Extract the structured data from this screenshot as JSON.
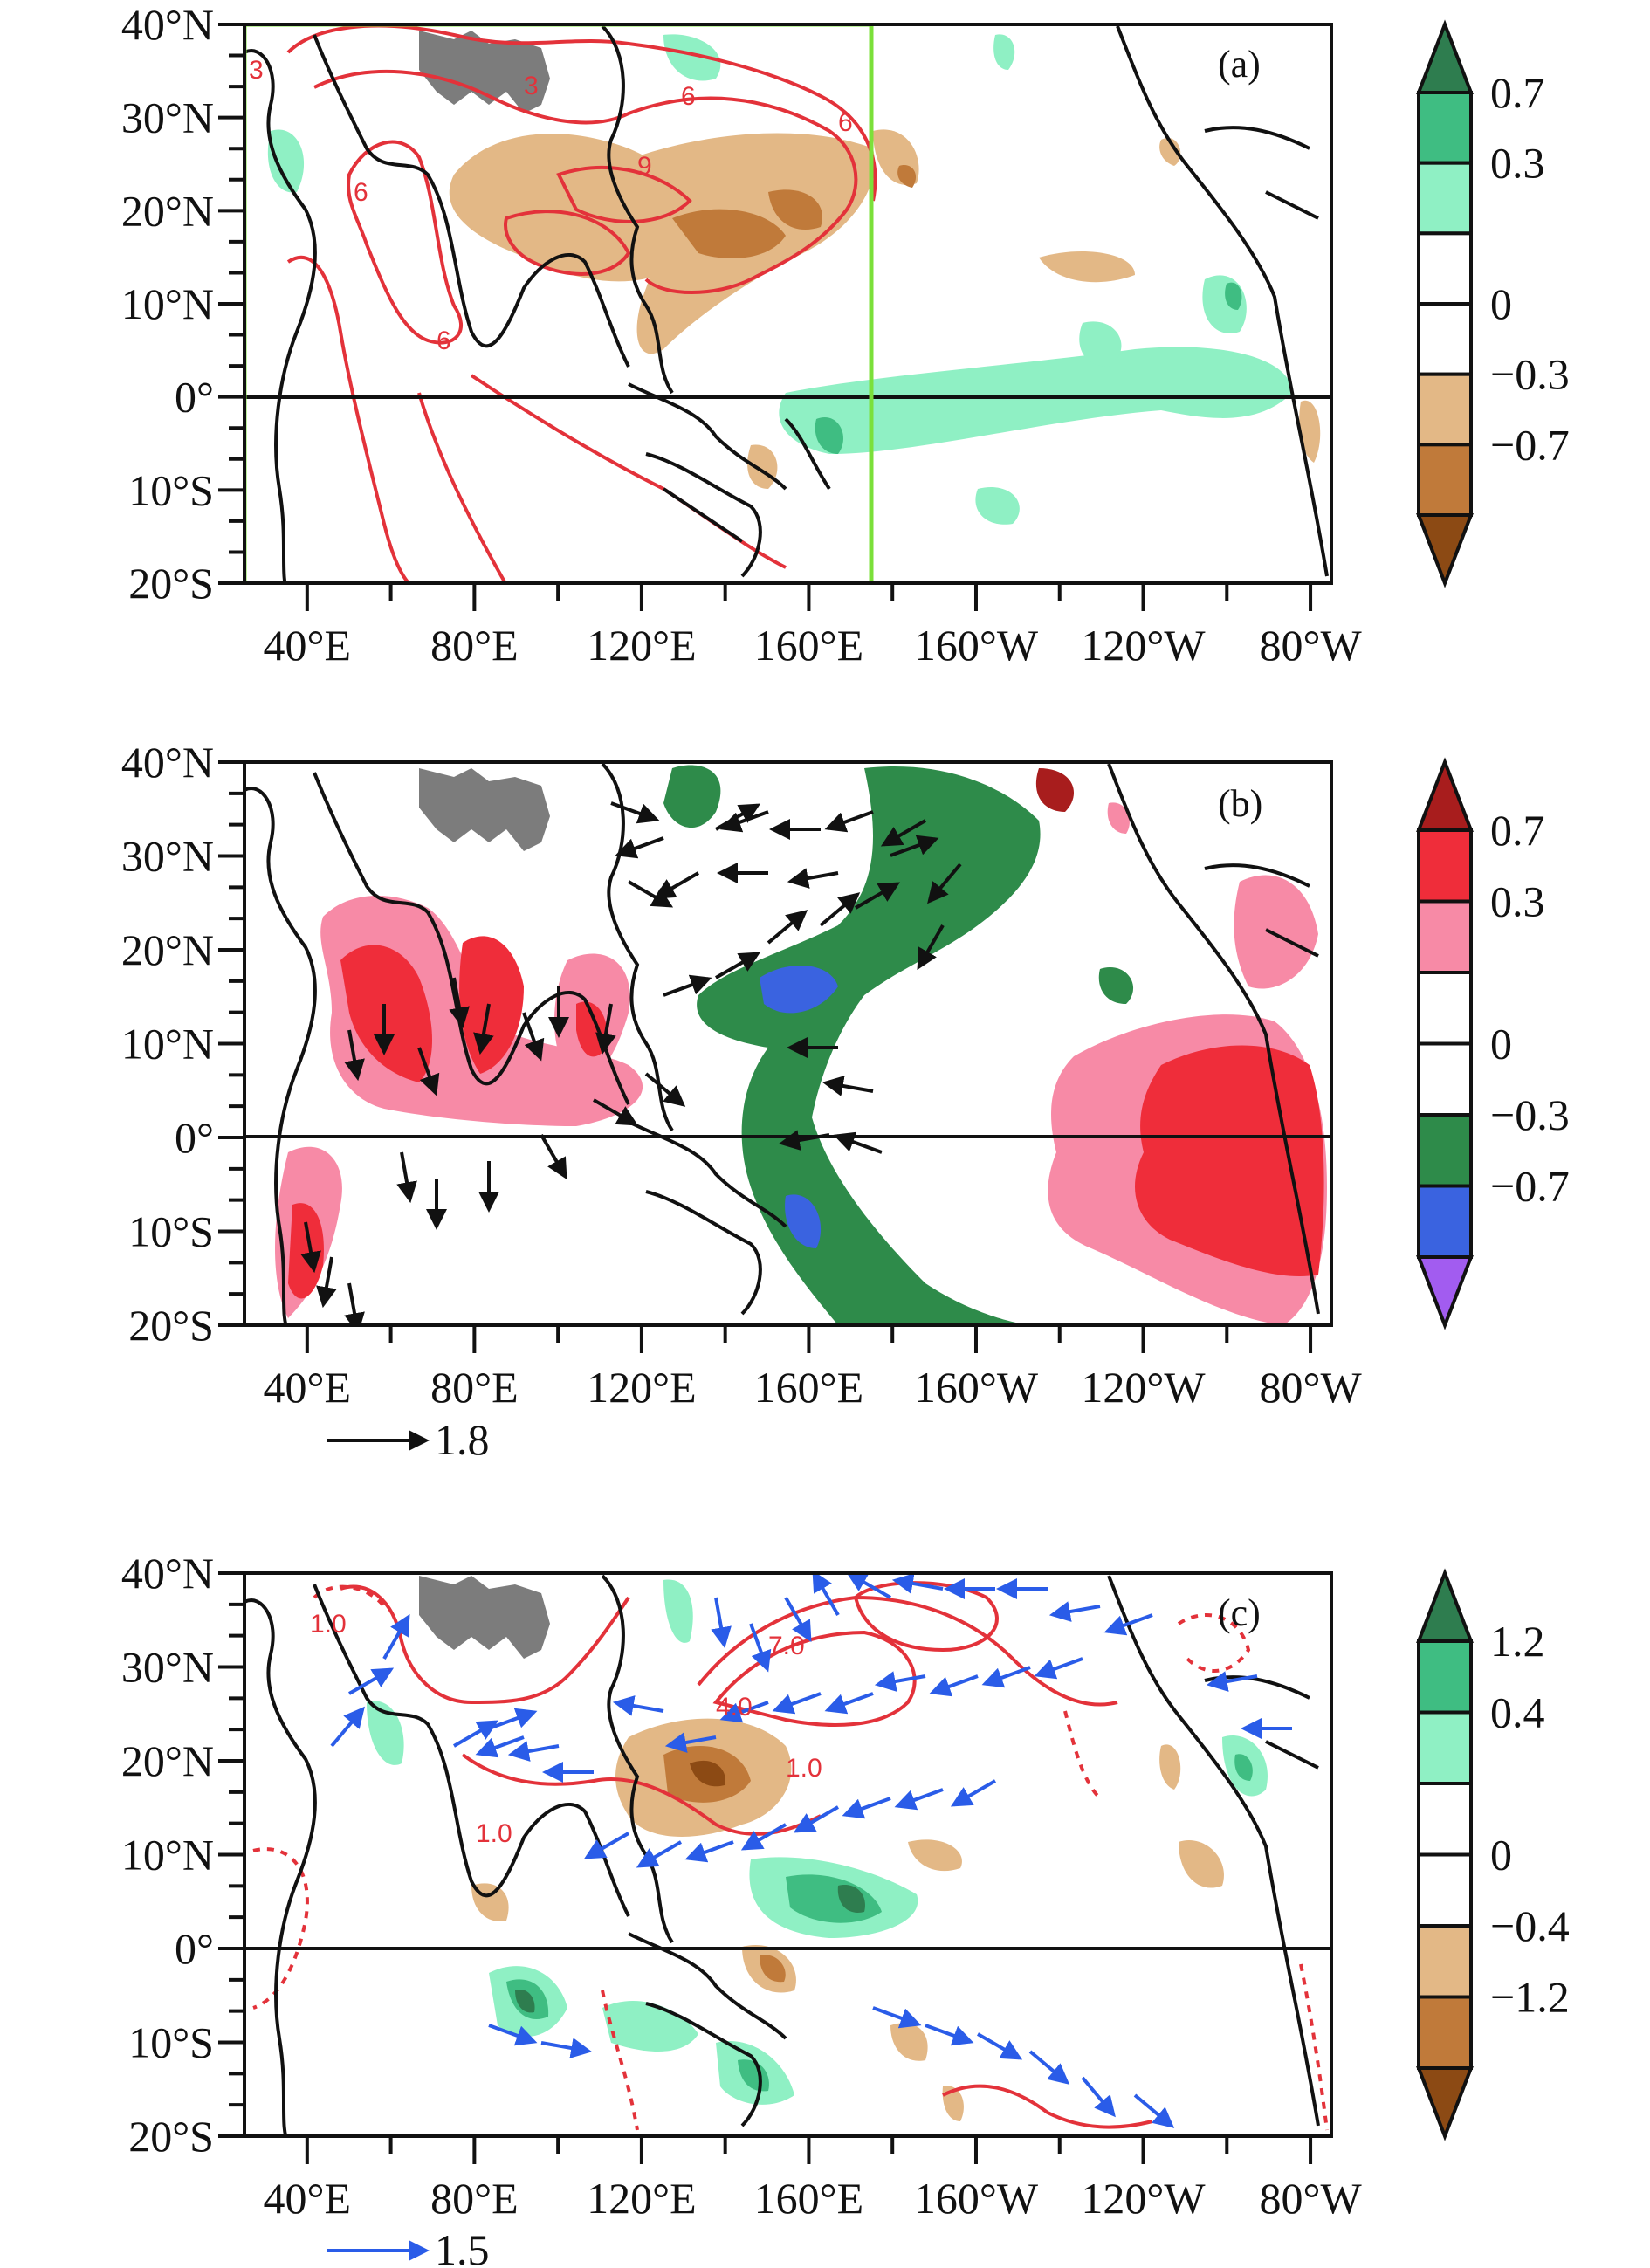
{
  "panels": [
    {
      "label": "(a)",
      "lat_labels": [
        "40°N",
        "30°N",
        "20°N",
        "10°N",
        "0°",
        "10°S",
        "20°S"
      ],
      "lon_labels": [
        "40°E",
        "80°E",
        "120°E",
        "160°E",
        "160°W",
        "120°W",
        "80°W"
      ],
      "colorbar": {
        "labels": [
          "0.7",
          "0.3",
          "0",
          "−0.3",
          "−0.7"
        ],
        "colors": [
          "#2e7d4f",
          "#3fbd82",
          "#8ff0c4",
          "#ffffff",
          "#ffffff",
          "#e3b886",
          "#c07a3a",
          "#8c4a14"
        ]
      },
      "contour_labels": [
        "3",
        "6",
        "9",
        "6",
        "6",
        "3",
        "6"
      ],
      "legend_box_color": "#7be03a"
    },
    {
      "label": "(b)",
      "lat_labels": [
        "40°N",
        "30°N",
        "20°N",
        "10°N",
        "0°",
        "10°S",
        "20°S"
      ],
      "lon_labels": [
        "40°E",
        "80°E",
        "120°E",
        "160°E",
        "160°W",
        "120°W",
        "80°W"
      ],
      "colorbar": {
        "labels": [
          "0.7",
          "0.3",
          "0",
          "−0.3",
          "−0.7"
        ],
        "colors": [
          "#a81d1d",
          "#ef2d3a",
          "#f78aa6",
          "#ffffff",
          "#ffffff",
          "#2e8b4a",
          "#3a63e0",
          "#a25cf0"
        ]
      },
      "vector_ref": "1.8",
      "vector_color": "#111111"
    },
    {
      "label": "(c)",
      "lat_labels": [
        "40°N",
        "30°N",
        "20°N",
        "10°N",
        "0°",
        "10°S",
        "20°S"
      ],
      "lon_labels": [
        "40°E",
        "80°E",
        "120°E",
        "160°E",
        "160°W",
        "120°W",
        "80°W"
      ],
      "colorbar": {
        "labels": [
          "1.2",
          "0.4",
          "0",
          "−0.4",
          "−1.2"
        ],
        "colors": [
          "#2e7d4f",
          "#3fbd82",
          "#8ff0c4",
          "#ffffff",
          "#ffffff",
          "#e3b886",
          "#c07a3a",
          "#8c4a14"
        ]
      },
      "contour_labels": [
        "1.0",
        "7.0",
        "4.0",
        "1.0",
        "1.0"
      ],
      "vector_ref": "1.5",
      "vector_color": "#2a5ce8"
    }
  ]
}
